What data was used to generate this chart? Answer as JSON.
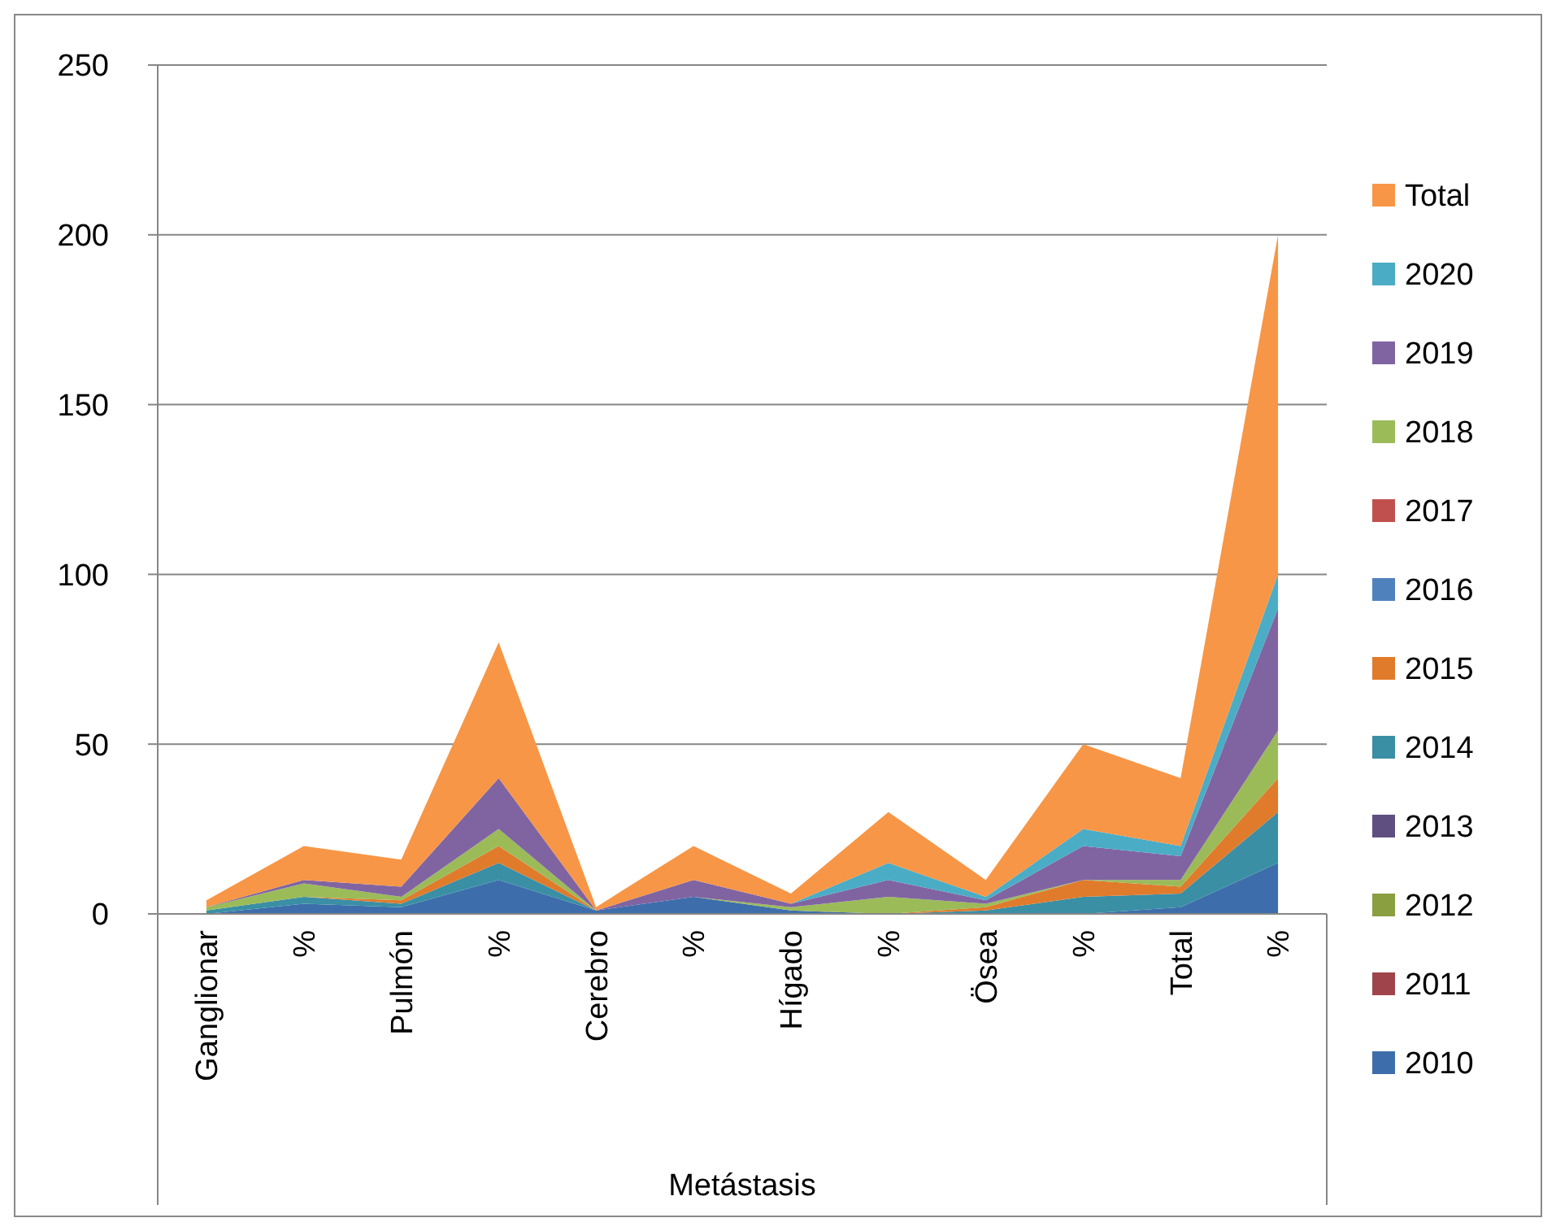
{
  "chart_data": {
    "type": "area",
    "stacked": true,
    "xlabel": "Metástasis",
    "categories": [
      "Ganglionar",
      "%",
      "Pulmón",
      "%",
      "Cerebro",
      "%",
      "Hígado",
      "%",
      "Ösea",
      "%",
      "Total",
      "%"
    ],
    "ylim": [
      0,
      250
    ],
    "yticks": [
      0,
      50,
      100,
      150,
      200,
      250
    ],
    "grid": "y",
    "legend": "right",
    "series": [
      {
        "name": "2010",
        "color": "#3d6eab",
        "values": [
          0,
          3,
          2,
          10,
          1,
          5,
          1,
          0,
          0,
          0,
          2,
          15
        ]
      },
      {
        "name": "2011",
        "color": "#a0444b",
        "values": [
          null,
          null,
          null,
          null,
          null,
          null,
          null,
          null,
          null,
          null,
          null,
          null
        ]
      },
      {
        "name": "2012",
        "color": "#8a9f3f",
        "values": [
          null,
          null,
          null,
          null,
          null,
          null,
          null,
          null,
          null,
          null,
          null,
          null
        ]
      },
      {
        "name": "2013",
        "color": "#5f4f80",
        "values": [
          null,
          null,
          null,
          null,
          null,
          null,
          null,
          null,
          null,
          null,
          null,
          null
        ]
      },
      {
        "name": "2014",
        "color": "#3a8fa5",
        "values": [
          1,
          2,
          1,
          5,
          0,
          0,
          0,
          0,
          1,
          5,
          4,
          15
        ]
      },
      {
        "name": "2015",
        "color": "#e07b2c",
        "values": [
          0,
          0,
          1,
          5,
          0,
          0,
          0,
          0,
          1,
          5,
          2,
          10
        ]
      },
      {
        "name": "2016",
        "color": "#4f81bd",
        "values": [
          null,
          null,
          null,
          null,
          null,
          null,
          null,
          null,
          null,
          null,
          null,
          null
        ]
      },
      {
        "name": "2017",
        "color": "#c0504d",
        "values": [
          null,
          null,
          null,
          null,
          null,
          null,
          null,
          null,
          null,
          null,
          null,
          null
        ]
      },
      {
        "name": "2018",
        "color": "#9bbb59",
        "values": [
          1,
          4,
          1,
          5,
          0,
          0,
          1,
          5,
          1,
          0,
          2,
          14
        ]
      },
      {
        "name": "2019",
        "color": "#8064a2",
        "values": [
          0,
          1,
          3,
          15,
          0,
          5,
          1,
          5,
          1,
          10,
          7,
          36
        ]
      },
      {
        "name": "2020",
        "color": "#4bacc6",
        "values": [
          0,
          0,
          0,
          0,
          0,
          0,
          0,
          5,
          1,
          5,
          3,
          10
        ]
      },
      {
        "name": "Total",
        "color": "#f79646",
        "values": [
          2,
          10,
          8,
          40,
          1,
          10,
          3,
          15,
          5,
          25,
          20,
          100
        ]
      }
    ]
  }
}
